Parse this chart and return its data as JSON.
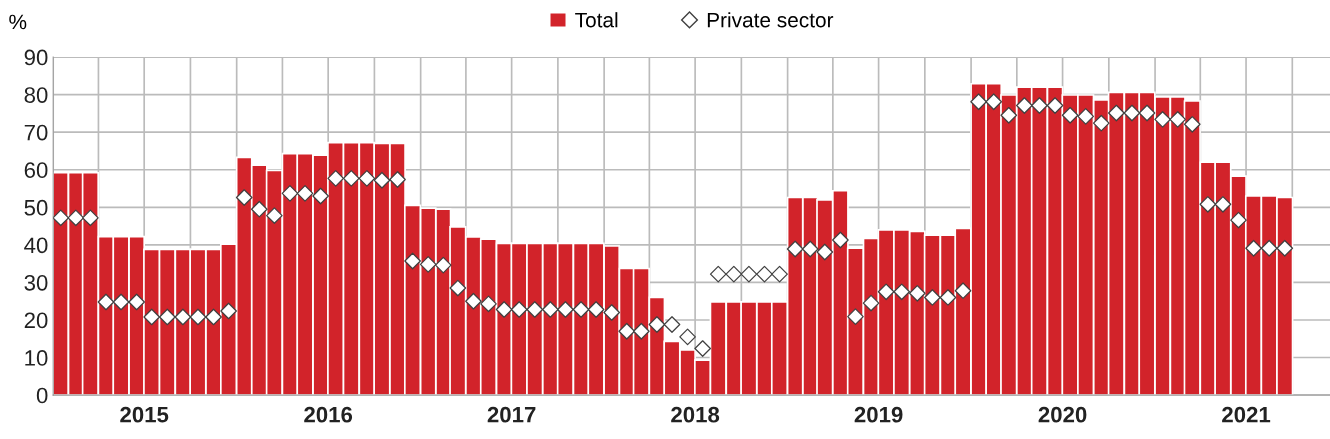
{
  "chart_data": {
    "type": "bar",
    "ylabel": "%",
    "x": [
      "2015-01-16",
      "2015-02-15",
      "2015-03-16",
      "2015-04-16",
      "2015-05-16",
      "2015-06-16",
      "2015-07-16",
      "2015-08-16",
      "2015-09-16",
      "2015-10-16",
      "2015-11-16",
      "2015-12-16",
      "2016-01-16",
      "2016-02-15",
      "2016-03-16",
      "2016-04-16",
      "2016-05-16",
      "2016-06-16",
      "2016-07-16",
      "2016-08-16",
      "2016-09-16",
      "2016-10-16",
      "2016-11-16",
      "2016-12-16",
      "2017-01-16",
      "2017-02-15",
      "2017-03-16",
      "2017-04-16",
      "2017-05-16",
      "2017-06-16",
      "2017-07-16",
      "2017-08-16",
      "2017-09-16",
      "2017-10-16",
      "2017-11-16",
      "2017-12-16",
      "2018-01-16",
      "2018-02-15",
      "2018-03-16",
      "2018-04-16",
      "2018-05-16",
      "2018-06-16",
      "2018-07-16",
      "2018-08-16",
      "2018-09-16",
      "2018-10-16",
      "2018-11-16",
      "2018-12-16",
      "2019-01-16",
      "2019-02-15",
      "2019-03-16",
      "2019-04-16",
      "2019-05-16",
      "2019-06-16",
      "2019-07-16",
      "2019-08-16",
      "2019-09-16",
      "2019-10-16",
      "2019-11-16",
      "2019-12-16",
      "2020-01-16",
      "2020-02-15",
      "2020-03-16",
      "2020-04-16",
      "2020-05-16",
      "2020-06-16",
      "2020-07-16",
      "2020-08-16",
      "2020-09-16",
      "2020-10-16",
      "2020-11-16",
      "2020-12-16",
      "2021-01-16",
      "2021-02-15",
      "2021-03-16",
      "2021-04-16",
      "2021-05-16",
      "2021-06-16",
      "2021-07-16",
      "2021-08-16",
      "2021-09-16"
    ],
    "series": [
      {
        "name": "Total",
        "color": "#d2232a",
        "values": [
          59.2,
          59.2,
          59.2,
          42.2,
          42.2,
          42.2,
          38.8,
          38.8,
          38.8,
          38.8,
          38.8,
          40.2,
          63.3,
          61.2,
          59.8,
          64.3,
          64.3,
          63.9,
          67.2,
          67.2,
          67.2,
          67,
          67,
          50.5,
          49.8,
          49.5,
          44.8,
          42.1,
          41.5,
          40.4,
          40.4,
          40.4,
          40.4,
          40.4,
          40.4,
          40.4,
          39.7,
          33.7,
          33.7,
          26,
          14.3,
          12,
          9.3,
          24.8,
          24.8,
          24.8,
          24.8,
          24.8,
          52.6,
          52.6,
          52,
          54.4,
          39.1,
          41.7,
          44,
          44,
          43.6,
          42.6,
          42.6,
          44.4,
          82.9,
          82.9,
          79.9,
          82,
          82,
          82,
          79.9,
          79.9,
          78.6,
          80.6,
          80.6,
          80.6,
          79.4,
          79.4,
          78.3,
          62,
          62,
          58.3,
          53,
          53,
          52.6
        ]
      },
      {
        "name": "Private sector",
        "type": "scatter",
        "marker": "diamond",
        "color": "#ffffff",
        "values": [
          47.2,
          47.2,
          47.2,
          24.8,
          24.8,
          24.8,
          20.8,
          20.8,
          20.8,
          20.8,
          20.8,
          22.4,
          52.6,
          49.5,
          47.8,
          53.7,
          53.7,
          53,
          57.7,
          57.7,
          57.7,
          57.2,
          57.4,
          35.7,
          34.8,
          34.6,
          28.5,
          25,
          24.3,
          22.8,
          22.8,
          22.8,
          22.8,
          22.8,
          22.8,
          22.8,
          22,
          17,
          17,
          18.8,
          18.8,
          15.5,
          12.4,
          32.2,
          32.2,
          32.2,
          32.2,
          32.2,
          38.9,
          38.9,
          38.1,
          41.3,
          20.9,
          24.5,
          27.5,
          27.5,
          27.1,
          26,
          26,
          27.8,
          78.1,
          78.1,
          74.5,
          77.1,
          77.1,
          77.1,
          74.5,
          74.2,
          72.4,
          75.1,
          75.1,
          75.1,
          73.4,
          73.4,
          72.1,
          50.8,
          50.8,
          46.6,
          39.1,
          39.1,
          39.1
        ]
      }
    ],
    "xlim": [
      "2015-01-01",
      "2021-12-15"
    ],
    "xticks": [
      {
        "value": "2015-01-01",
        "label": null
      },
      {
        "value": "2015-04-01",
        "label": null
      },
      {
        "value": "2015-07-01",
        "label": "2015"
      },
      {
        "value": "2015-10-01",
        "label": null
      },
      {
        "value": "2016-01-01",
        "label": null
      },
      {
        "value": "2016-04-01",
        "label": null
      },
      {
        "value": "2016-07-01",
        "label": "2016"
      },
      {
        "value": "2016-10-01",
        "label": null
      },
      {
        "value": "2017-01-01",
        "label": null
      },
      {
        "value": "2017-04-01",
        "label": null
      },
      {
        "value": "2017-07-01",
        "label": "2017"
      },
      {
        "value": "2017-10-01",
        "label": null
      },
      {
        "value": "2018-01-01",
        "label": null
      },
      {
        "value": "2018-04-01",
        "label": null
      },
      {
        "value": "2018-07-01",
        "label": "2018"
      },
      {
        "value": "2018-10-01",
        "label": null
      },
      {
        "value": "2019-01-01",
        "label": null
      },
      {
        "value": "2019-04-01",
        "label": null
      },
      {
        "value": "2019-07-01",
        "label": "2019"
      },
      {
        "value": "2019-10-01",
        "label": null
      },
      {
        "value": "2020-01-01",
        "label": null
      },
      {
        "value": "2020-04-01",
        "label": null
      },
      {
        "value": "2020-07-01",
        "label": "2020"
      },
      {
        "value": "2020-10-01",
        "label": null
      },
      {
        "value": "2021-01-01",
        "label": null
      },
      {
        "value": "2021-04-01",
        "label": null
      },
      {
        "value": "2021-07-01",
        "label": "2021"
      },
      {
        "value": "2021-10-01",
        "label": null
      }
    ],
    "ylim": [
      0,
      90
    ],
    "yticks": [
      0,
      10,
      20,
      30,
      40,
      50,
      60,
      70,
      80,
      90
    ],
    "grid": true,
    "legend": "top"
  }
}
